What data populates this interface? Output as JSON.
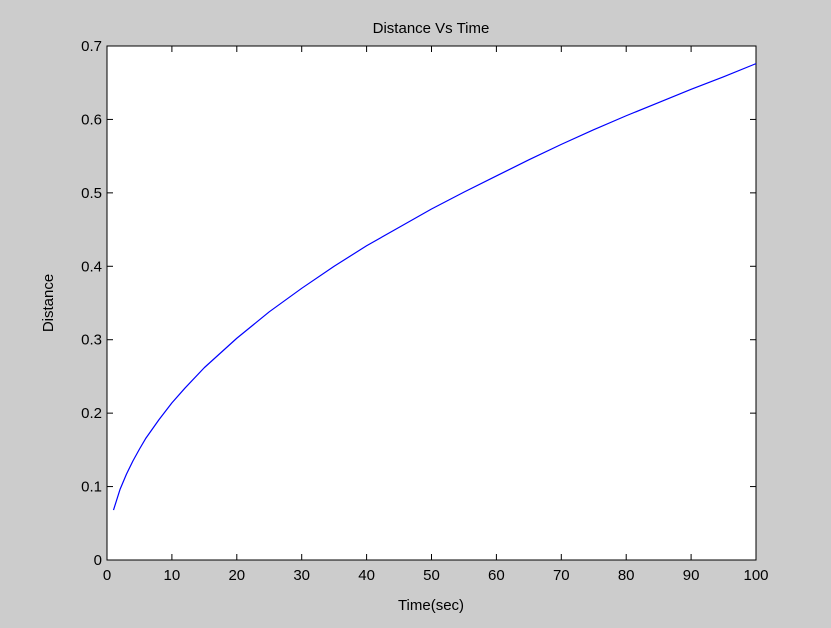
{
  "chart_data": {
    "type": "line",
    "title": "Distance Vs Time",
    "xlabel": "Time(sec)",
    "ylabel": "Distance",
    "xlim": [
      0,
      100
    ],
    "ylim": [
      0,
      0.7
    ],
    "xticks": [
      0,
      10,
      20,
      30,
      40,
      50,
      60,
      70,
      80,
      90,
      100
    ],
    "yticks": [
      0,
      0.1,
      0.2,
      0.3,
      0.4,
      0.5,
      0.6,
      0.7
    ],
    "xtick_labels": [
      "0",
      "10",
      "20",
      "30",
      "40",
      "50",
      "60",
      "70",
      "80",
      "90",
      "100"
    ],
    "ytick_labels": [
      "0",
      "0.1",
      "0.2",
      "0.3",
      "0.4",
      "0.5",
      "0.6",
      "0.7"
    ],
    "grid": false,
    "legend": "none",
    "series": [
      {
        "color": "#0000ff",
        "x": [
          1,
          2,
          3,
          4,
          5,
          6,
          8,
          10,
          12,
          15,
          20,
          25,
          30,
          35,
          40,
          45,
          50,
          55,
          60,
          65,
          70,
          75,
          80,
          85,
          90,
          95,
          100
        ],
        "y": [
          0.068,
          0.096,
          0.117,
          0.135,
          0.151,
          0.166,
          0.191,
          0.214,
          0.234,
          0.262,
          0.302,
          0.338,
          0.37,
          0.4,
          0.428,
          0.453,
          0.478,
          0.501,
          0.523,
          0.545,
          0.566,
          0.586,
          0.605,
          0.623,
          0.641,
          0.658,
          0.676
        ]
      }
    ]
  }
}
